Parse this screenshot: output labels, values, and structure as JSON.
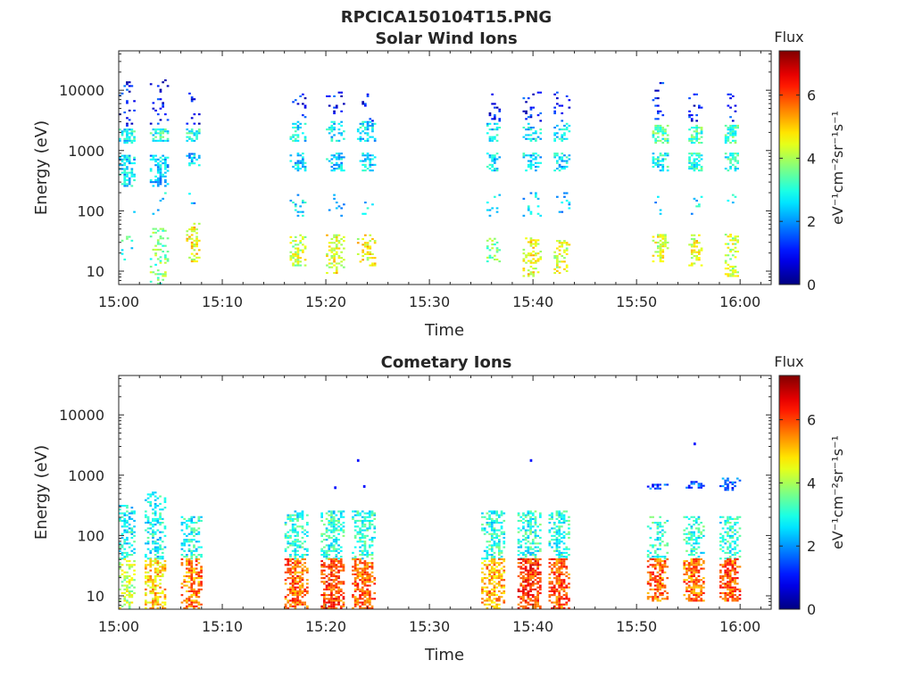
{
  "figure_title": "RPCICA150104T15.PNG",
  "chart_data": [
    {
      "type": "heatmap",
      "title": "Solar Wind Ions",
      "xlabel": "Time",
      "ylabel": "Energy (eV)",
      "x_ticks": [
        "15:00",
        "15:10",
        "15:20",
        "15:30",
        "15:40",
        "15:50",
        "16:00"
      ],
      "xlim": [
        "15:00",
        "16:03"
      ],
      "y_scale": "log",
      "y_ticks": [
        10,
        100,
        1000,
        10000
      ],
      "y_tick_labels": [
        "10",
        "100",
        "1000",
        "10000"
      ],
      "ylim": [
        6,
        45000
      ],
      "colorbar": {
        "title": "Flux",
        "unit": "eV⁻¹cm⁻²sr⁻¹s⁻¹",
        "range": [
          0,
          7.4
        ],
        "ticks": [
          0,
          2,
          4,
          6
        ],
        "colormap": "jet"
      },
      "bursts": [
        {
          "t": "15:00",
          "duration_min": 1.6,
          "bands": [
            {
              "e_lo": 250,
              "e_hi": 800,
              "flux": 2.5,
              "density": 0.75
            },
            {
              "e_lo": 1300,
              "e_hi": 2300,
              "flux": 2.8,
              "density": 0.7
            },
            {
              "e_lo": 2500,
              "e_hi": 15000,
              "flux": 1.0,
              "density": 0.14
            },
            {
              "e_lo": 80,
              "e_hi": 200,
              "flux": 2.4,
              "density": 0.06
            },
            {
              "e_lo": 14,
              "e_hi": 40,
              "flux": 3.0,
              "density": 0.25
            }
          ]
        },
        {
          "t": "15:03",
          "duration_min": 1.9,
          "bands": [
            {
              "e_lo": 250,
              "e_hi": 800,
              "flux": 2.3,
              "density": 0.7
            },
            {
              "e_lo": 1400,
              "e_hi": 2200,
              "flux": 3.0,
              "density": 0.8
            },
            {
              "e_lo": 2500,
              "e_hi": 15000,
              "flux": 1.0,
              "density": 0.14
            },
            {
              "e_lo": 80,
              "e_hi": 200,
              "flux": 2.4,
              "density": 0.05
            },
            {
              "e_lo": 6,
              "e_hi": 50,
              "flux": 3.6,
              "density": 0.35
            }
          ]
        },
        {
          "t": "15:06.5",
          "duration_min": 1.5,
          "bands": [
            {
              "e_lo": 550,
              "e_hi": 900,
              "flux": 2.4,
              "density": 0.75
            },
            {
              "e_lo": 1400,
              "e_hi": 2200,
              "flux": 2.9,
              "density": 0.7
            },
            {
              "e_lo": 2500,
              "e_hi": 9000,
              "flux": 1.0,
              "density": 0.14
            },
            {
              "e_lo": 90,
              "e_hi": 200,
              "flux": 2.5,
              "density": 0.1
            },
            {
              "e_lo": 14,
              "e_hi": 60,
              "flux": 4.6,
              "density": 0.45
            }
          ]
        },
        {
          "t": "15:16.5",
          "duration_min": 1.7,
          "bands": [
            {
              "e_lo": 450,
              "e_hi": 900,
              "flux": 2.5,
              "density": 0.6
            },
            {
              "e_lo": 1400,
              "e_hi": 3000,
              "flux": 2.7,
              "density": 0.6
            },
            {
              "e_lo": 3000,
              "e_hi": 9000,
              "flux": 1.0,
              "density": 0.15
            },
            {
              "e_lo": 80,
              "e_hi": 200,
              "flux": 2.5,
              "density": 0.1
            },
            {
              "e_lo": 12,
              "e_hi": 40,
              "flux": 4.2,
              "density": 0.55
            }
          ]
        },
        {
          "t": "15:20",
          "duration_min": 1.9,
          "bands": [
            {
              "e_lo": 450,
              "e_hi": 900,
              "flux": 2.5,
              "density": 0.6
            },
            {
              "e_lo": 1400,
              "e_hi": 3000,
              "flux": 2.6,
              "density": 0.55
            },
            {
              "e_lo": 3000,
              "e_hi": 9000,
              "flux": 1.0,
              "density": 0.15
            },
            {
              "e_lo": 80,
              "e_hi": 200,
              "flux": 2.4,
              "density": 0.1
            },
            {
              "e_lo": 9,
              "e_hi": 40,
              "flux": 4.5,
              "density": 0.5
            }
          ]
        },
        {
          "t": "15:23",
          "duration_min": 1.8,
          "bands": [
            {
              "e_lo": 450,
              "e_hi": 900,
              "flux": 2.6,
              "density": 0.65
            },
            {
              "e_lo": 1400,
              "e_hi": 3000,
              "flux": 2.6,
              "density": 0.6
            },
            {
              "e_lo": 3000,
              "e_hi": 9000,
              "flux": 1.0,
              "density": 0.15
            },
            {
              "e_lo": 80,
              "e_hi": 200,
              "flux": 2.4,
              "density": 0.1
            },
            {
              "e_lo": 12,
              "e_hi": 40,
              "flux": 4.6,
              "density": 0.55
            }
          ]
        },
        {
          "t": "15:35.5",
          "duration_min": 1.5,
          "bands": [
            {
              "e_lo": 450,
              "e_hi": 900,
              "flux": 2.5,
              "density": 0.65
            },
            {
              "e_lo": 1400,
              "e_hi": 2800,
              "flux": 2.6,
              "density": 0.55
            },
            {
              "e_lo": 3000,
              "e_hi": 9000,
              "flux": 1.0,
              "density": 0.15
            },
            {
              "e_lo": 80,
              "e_hi": 200,
              "flux": 2.4,
              "density": 0.1
            },
            {
              "e_lo": 14,
              "e_hi": 35,
              "flux": 3.6,
              "density": 0.5
            }
          ]
        },
        {
          "t": "15:39",
          "duration_min": 1.8,
          "bands": [
            {
              "e_lo": 450,
              "e_hi": 900,
              "flux": 2.5,
              "density": 0.6
            },
            {
              "e_lo": 1400,
              "e_hi": 2800,
              "flux": 2.6,
              "density": 0.55
            },
            {
              "e_lo": 3000,
              "e_hi": 9000,
              "flux": 1.0,
              "density": 0.15
            },
            {
              "e_lo": 80,
              "e_hi": 200,
              "flux": 2.4,
              "density": 0.1
            },
            {
              "e_lo": 8,
              "e_hi": 35,
              "flux": 4.6,
              "density": 0.5
            }
          ]
        },
        {
          "t": "15:42",
          "duration_min": 1.7,
          "bands": [
            {
              "e_lo": 450,
              "e_hi": 900,
              "flux": 2.6,
              "density": 0.6
            },
            {
              "e_lo": 1400,
              "e_hi": 2800,
              "flux": 2.6,
              "density": 0.55
            },
            {
              "e_lo": 3000,
              "e_hi": 9000,
              "flux": 1.0,
              "density": 0.15
            },
            {
              "e_lo": 80,
              "e_hi": 200,
              "flux": 2.4,
              "density": 0.1
            },
            {
              "e_lo": 9,
              "e_hi": 35,
              "flux": 4.3,
              "density": 0.45
            }
          ]
        },
        {
          "t": "15:51.5",
          "duration_min": 1.6,
          "bands": [
            {
              "e_lo": 450,
              "e_hi": 900,
              "flux": 2.9,
              "density": 0.75
            },
            {
              "e_lo": 1300,
              "e_hi": 2500,
              "flux": 3.3,
              "density": 0.75
            },
            {
              "e_lo": 3000,
              "e_hi": 14000,
              "flux": 1.0,
              "density": 0.15
            },
            {
              "e_lo": 80,
              "e_hi": 200,
              "flux": 2.5,
              "density": 0.1
            },
            {
              "e_lo": 14,
              "e_hi": 40,
              "flux": 4.3,
              "density": 0.5
            }
          ]
        },
        {
          "t": "15:55",
          "duration_min": 1.4,
          "bands": [
            {
              "e_lo": 450,
              "e_hi": 900,
              "flux": 3.0,
              "density": 0.75
            },
            {
              "e_lo": 1300,
              "e_hi": 2500,
              "flux": 3.3,
              "density": 0.75
            },
            {
              "e_lo": 3000,
              "e_hi": 9000,
              "flux": 1.0,
              "density": 0.15
            },
            {
              "e_lo": 80,
              "e_hi": 200,
              "flux": 2.5,
              "density": 0.1
            },
            {
              "e_lo": 12,
              "e_hi": 40,
              "flux": 4.5,
              "density": 0.5
            }
          ]
        },
        {
          "t": "15:58.5",
          "duration_min": 1.5,
          "bands": [
            {
              "e_lo": 450,
              "e_hi": 900,
              "flux": 3.0,
              "density": 0.75
            },
            {
              "e_lo": 1300,
              "e_hi": 2500,
              "flux": 3.2,
              "density": 0.75
            },
            {
              "e_lo": 3000,
              "e_hi": 9000,
              "flux": 1.0,
              "density": 0.15
            },
            {
              "e_lo": 80,
              "e_hi": 200,
              "flux": 2.5,
              "density": 0.1
            },
            {
              "e_lo": 8,
              "e_hi": 40,
              "flux": 4.2,
              "density": 0.5
            }
          ]
        }
      ]
    },
    {
      "type": "heatmap",
      "title": "Cometary Ions",
      "xlabel": "Time",
      "ylabel": "Energy (eV)",
      "x_ticks": [
        "15:00",
        "15:10",
        "15:20",
        "15:30",
        "15:40",
        "15:50",
        "16:00"
      ],
      "xlim": [
        "15:00",
        "16:03"
      ],
      "y_scale": "log",
      "y_ticks": [
        10,
        100,
        1000,
        10000
      ],
      "y_tick_labels": [
        "10",
        "100",
        "1000",
        "10000"
      ],
      "ylim": [
        6,
        45000
      ],
      "colorbar": {
        "title": "Flux",
        "unit": "eV⁻¹cm⁻²sr⁻¹s⁻¹",
        "range": [
          0,
          7.4
        ],
        "ticks": [
          0,
          2,
          4,
          6
        ],
        "colormap": "jet"
      },
      "bursts": [
        {
          "t": "15:00",
          "duration_min": 1.7,
          "bands": [
            {
              "e_lo": 40,
              "e_hi": 300,
              "flux": 2.8,
              "density": 0.55
            },
            {
              "e_lo": 6,
              "e_hi": 40,
              "flux": 4.2,
              "density": 0.55
            }
          ]
        },
        {
          "t": "15:02.5",
          "duration_min": 2.2,
          "bands": [
            {
              "e_lo": 40,
              "e_hi": 500,
              "flux": 2.8,
              "density": 0.55
            },
            {
              "e_lo": 6,
              "e_hi": 40,
              "flux": 5.0,
              "density": 0.7
            }
          ]
        },
        {
          "t": "15:06",
          "duration_min": 2.0,
          "bands": [
            {
              "e_lo": 40,
              "e_hi": 200,
              "flux": 2.9,
              "density": 0.6
            },
            {
              "e_lo": 6,
              "e_hi": 40,
              "flux": 5.6,
              "density": 0.75
            }
          ]
        },
        {
          "t": "15:16",
          "duration_min": 2.4,
          "bands": [
            {
              "e_lo": 40,
              "e_hi": 250,
              "flux": 3.0,
              "density": 0.6
            },
            {
              "e_lo": 6,
              "e_hi": 40,
              "flux": 5.8,
              "density": 0.8
            }
          ]
        },
        {
          "t": "15:19.5",
          "duration_min": 2.4,
          "bands": [
            {
              "e_lo": 40,
              "e_hi": 250,
              "flux": 3.0,
              "density": 0.6
            },
            {
              "e_lo": 6,
              "e_hi": 40,
              "flux": 6.0,
              "density": 0.8
            }
          ]
        },
        {
          "t": "15:22.5",
          "duration_min": 2.4,
          "bands": [
            {
              "e_lo": 40,
              "e_hi": 250,
              "flux": 3.0,
              "density": 0.6
            },
            {
              "e_lo": 6,
              "e_hi": 40,
              "flux": 5.8,
              "density": 0.8
            }
          ]
        },
        {
          "t": "15:35",
          "duration_min": 2.3,
          "bands": [
            {
              "e_lo": 40,
              "e_hi": 250,
              "flux": 3.0,
              "density": 0.6
            },
            {
              "e_lo": 6,
              "e_hi": 40,
              "flux": 5.2,
              "density": 0.75
            }
          ]
        },
        {
          "t": "15:38.5",
          "duration_min": 2.4,
          "bands": [
            {
              "e_lo": 40,
              "e_hi": 250,
              "flux": 3.0,
              "density": 0.6
            },
            {
              "e_lo": 6,
              "e_hi": 40,
              "flux": 6.1,
              "density": 0.8
            }
          ]
        },
        {
          "t": "15:41.5",
          "duration_min": 2.2,
          "bands": [
            {
              "e_lo": 40,
              "e_hi": 250,
              "flux": 3.0,
              "density": 0.6
            },
            {
              "e_lo": 6,
              "e_hi": 40,
              "flux": 5.9,
              "density": 0.8
            }
          ]
        },
        {
          "t": "15:51",
          "duration_min": 2.0,
          "bands": [
            {
              "e_lo": 40,
              "e_hi": 200,
              "flux": 3.0,
              "density": 0.55
            },
            {
              "e_lo": 8,
              "e_hi": 40,
              "flux": 5.8,
              "density": 0.8
            },
            {
              "e_lo": 580,
              "e_hi": 700,
              "flux": 1.5,
              "density": 0.6
            }
          ]
        },
        {
          "t": "15:54.5",
          "duration_min": 2.0,
          "bands": [
            {
              "e_lo": 40,
              "e_hi": 200,
              "flux": 3.0,
              "density": 0.55
            },
            {
              "e_lo": 8,
              "e_hi": 40,
              "flux": 5.7,
              "density": 0.8
            },
            {
              "e_lo": 600,
              "e_hi": 750,
              "flux": 1.5,
              "density": 0.6
            }
          ]
        },
        {
          "t": "15:58",
          "duration_min": 2.1,
          "bands": [
            {
              "e_lo": 40,
              "e_hi": 200,
              "flux": 3.0,
              "density": 0.55
            },
            {
              "e_lo": 8,
              "e_hi": 40,
              "flux": 5.9,
              "density": 0.8
            },
            {
              "e_lo": 550,
              "e_hi": 850,
              "flux": 1.5,
              "density": 0.6
            }
          ]
        }
      ],
      "isolated_points": [
        {
          "t": "15:20.8",
          "e": 620,
          "flux": 1.0
        },
        {
          "t": "15:23",
          "e": 1750,
          "flux": 1.0
        },
        {
          "t": "15:23.6",
          "e": 650,
          "flux": 1.0
        },
        {
          "t": "15:39.7",
          "e": 1750,
          "flux": 1.0
        },
        {
          "t": "15:55.5",
          "e": 3300,
          "flux": 1.0
        }
      ]
    }
  ]
}
